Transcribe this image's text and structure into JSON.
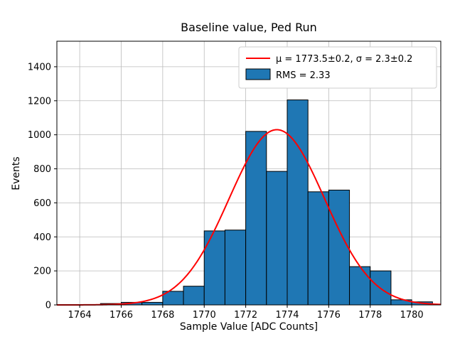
{
  "figure": {
    "title": "Baseline value, Ped Run",
    "xlabel": "Sample Value [ADC Counts]",
    "ylabel": "Events"
  },
  "chart_data": {
    "type": "bar",
    "subtype": "histogram",
    "title": "Baseline value, Ped Run",
    "xlabel": "Sample Value [ADC Counts]",
    "ylabel": "Events",
    "xlim": [
      1762.9,
      1781.4
    ],
    "ylim": [
      0,
      1550
    ],
    "xticks": [
      1764,
      1766,
      1768,
      1770,
      1772,
      1774,
      1776,
      1778,
      1780
    ],
    "yticks": [
      0,
      200,
      400,
      600,
      800,
      1000,
      1200,
      1400
    ],
    "grid": true,
    "bin_width": 1,
    "bins_left_edge": [
      1764,
      1765,
      1766,
      1767,
      1768,
      1769,
      1770,
      1771,
      1772,
      1773,
      1774,
      1775,
      1776,
      1777,
      1778,
      1779,
      1780
    ],
    "counts": [
      2,
      8,
      15,
      15,
      80,
      110,
      435,
      440,
      1020,
      785,
      1205,
      665,
      675,
      225,
      200,
      30,
      18
    ],
    "bar_color": "#1f77b4",
    "bar_edge_color": "#000000",
    "grid_color": "#bbbbbb",
    "fit": {
      "type": "gaussian",
      "mu": 1773.5,
      "sigma": 2.3,
      "amplitude": 1030,
      "color": "#ff0000"
    },
    "legend": {
      "position": "upper right",
      "entries": [
        {
          "label": "μ = 1773.5±0.2, σ = 2.3±0.2",
          "marker": "line",
          "color": "#ff0000"
        },
        {
          "label": "RMS = 2.33",
          "marker": "patch",
          "color": "#1f77b4"
        }
      ]
    }
  }
}
